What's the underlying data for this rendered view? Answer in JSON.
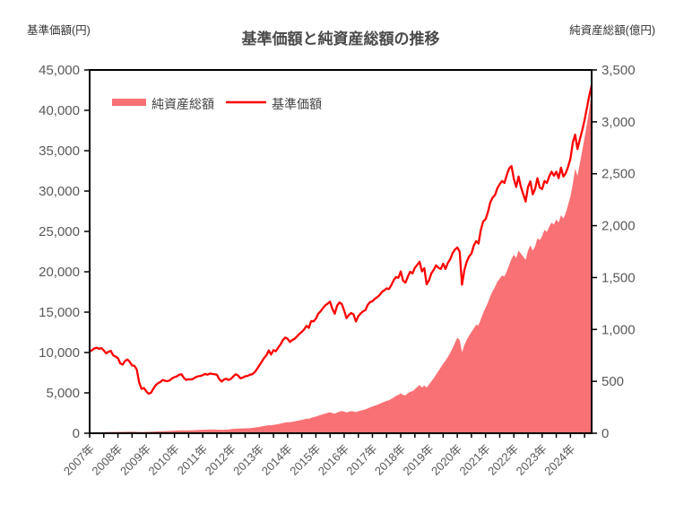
{
  "chart_data": {
    "type": "combo",
    "title": "基準価額と純資産総額の推移",
    "x_interval": "monthly",
    "x_start": "2007-01",
    "x_end": "2024-10",
    "x_tick_labels": [
      "2007年",
      "2008年",
      "2009年",
      "2010年",
      "2011年",
      "2012年",
      "2013年",
      "2014年",
      "2015年",
      "2016年",
      "2017年",
      "2018年",
      "2019年",
      "2020年",
      "2021年",
      "2022年",
      "2023年",
      "2024年"
    ],
    "left_axis": {
      "label": "基準価額(円)",
      "min": 0,
      "max": 45000,
      "step": 5000
    },
    "right_axis": {
      "label": "純資産総額(億円)",
      "min": 0,
      "max": 3500,
      "step": 500
    },
    "grid": false,
    "legend_position": "inside-top-left",
    "series": [
      {
        "name": "純資産総額",
        "type": "area",
        "axis": "right",
        "color": "#FA7175",
        "values": [
          3,
          4,
          6,
          7,
          8,
          9,
          10,
          11,
          12,
          12,
          12,
          13,
          13,
          13,
          14,
          14,
          15,
          15,
          15,
          15,
          14,
          13,
          12,
          13,
          14,
          14,
          15,
          16,
          17,
          18,
          19,
          20,
          21,
          22,
          23,
          24,
          25,
          26,
          27,
          28,
          28,
          27,
          28,
          28,
          29,
          30,
          31,
          32,
          33,
          34,
          35,
          36,
          36,
          36,
          35,
          34,
          33,
          34,
          35,
          36,
          40,
          42,
          44,
          45,
          45,
          46,
          47,
          48,
          50,
          52,
          55,
          58,
          62,
          66,
          70,
          73,
          78,
          76,
          81,
          84,
          88,
          93,
          98,
          103,
          107,
          106,
          110,
          114,
          119,
          124,
          129,
          134,
          140,
          139,
          148,
          155,
          161,
          169,
          176,
          183,
          190,
          196,
          203,
          194,
          189,
          200,
          208,
          214,
          209,
          200,
          207,
          213,
          211,
          203,
          212,
          218,
          224,
          230,
          240,
          249,
          258,
          266,
          274,
          283,
          294,
          302,
          312,
          318,
          330,
          345,
          360,
          370,
          385,
          370,
          365,
          385,
          400,
          405,
          425,
          445,
          465,
          440,
          460,
          440,
          470,
          500,
          530,
          565,
          600,
          635,
          670,
          700,
          735,
          775,
          820,
          870,
          920,
          900,
          780,
          850,
          900,
          940,
          975,
          1010,
          1045,
          1040,
          1100,
          1160,
          1210,
          1260,
          1320,
          1370,
          1410,
          1460,
          1490,
          1520,
          1510,
          1560,
          1620,
          1680,
          1720,
          1690,
          1760,
          1730,
          1700,
          1670,
          1760,
          1810,
          1760,
          1800,
          1880,
          1860,
          1900,
          1960,
          1940,
          1990,
          2030,
          2010,
          2060,
          2030,
          2100,
          2070,
          2120,
          2200,
          2280,
          2400,
          2550,
          2480,
          2600,
          2720,
          2850,
          2980,
          3120,
          3300
        ]
      },
      {
        "name": "基準価額",
        "type": "line",
        "axis": "left",
        "color": "#FF0000",
        "values": [
          10100,
          10300,
          10500,
          10600,
          10450,
          10550,
          10250,
          9900,
          10100,
          10200,
          9650,
          9500,
          9300,
          8650,
          8500,
          8950,
          9150,
          8850,
          8400,
          8350,
          7900,
          6300,
          5500,
          5600,
          5200,
          4900,
          5000,
          5500,
          5950,
          6200,
          6350,
          6600,
          6500,
          6450,
          6550,
          6800,
          6950,
          7050,
          7250,
          7300,
          6850,
          6600,
          6700,
          6650,
          6750,
          6950,
          7050,
          7100,
          7200,
          7350,
          7250,
          7400,
          7350,
          7300,
          7250,
          6700,
          6400,
          6650,
          6750,
          6600,
          6750,
          7050,
          7300,
          7150,
          6800,
          6900,
          7050,
          7100,
          7250,
          7300,
          7550,
          7950,
          8400,
          8850,
          9300,
          9650,
          10250,
          9750,
          10300,
          10150,
          10600,
          11000,
          11550,
          11850,
          11700,
          11300,
          11550,
          11700,
          12000,
          12300,
          12550,
          12850,
          13300,
          13050,
          13900,
          13850,
          14200,
          14800,
          15100,
          15500,
          15850,
          16050,
          16300,
          15400,
          14800,
          15800,
          16200,
          16000,
          15200,
          14250,
          14650,
          14900,
          14700,
          13850,
          14500,
          14850,
          15100,
          15250,
          15900,
          16250,
          16350,
          16650,
          16850,
          17100,
          17500,
          17700,
          17950,
          17850,
          18350,
          18950,
          19350,
          19250,
          20050,
          18900,
          18650,
          19400,
          20000,
          19800,
          20500,
          20850,
          21250,
          20050,
          20450,
          18450,
          18950,
          19800,
          20250,
          20800,
          20500,
          20350,
          21000,
          20350,
          21100,
          21550,
          22300,
          22750,
          23000,
          22500,
          18400,
          20200,
          21250,
          21900,
          22250,
          23250,
          23800,
          23500,
          25200,
          26250,
          26500,
          27400,
          28600,
          29200,
          29500,
          30350,
          30850,
          31250,
          31000,
          32000,
          32800,
          33100,
          31500,
          30500,
          31800,
          30500,
          29600,
          28700,
          30500,
          31200,
          29600,
          30250,
          31600,
          30400,
          30250,
          31250,
          31000,
          31800,
          32400,
          31900,
          32400,
          31600,
          32900,
          31800,
          32200,
          33000,
          34000,
          36000,
          37000,
          35200,
          36400,
          37500,
          38800,
          40300,
          41800,
          43100
        ]
      }
    ]
  }
}
